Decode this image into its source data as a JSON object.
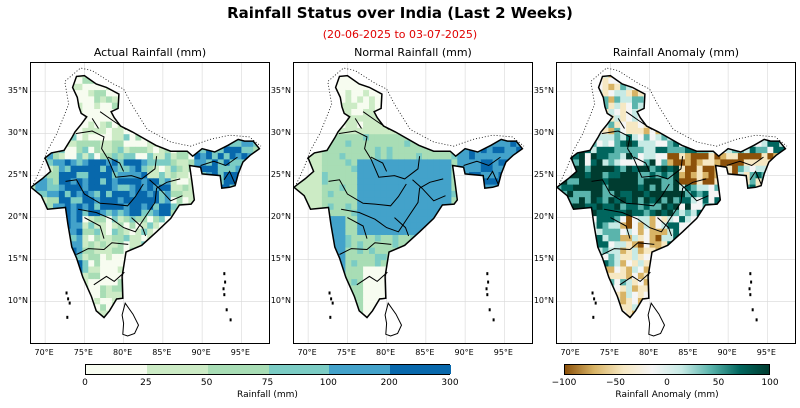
{
  "title": "Rainfall Status over India (Last 2 Weeks)",
  "subtitle": "(20-06-2025 to 03-07-2025)",
  "panels": [
    {
      "title": "Actual Rainfall (mm)"
    },
    {
      "title": "Normal Rainfall (mm)"
    },
    {
      "title": "Rainfall Anomaly (mm)"
    }
  ],
  "lat_ticks": [
    "35°N",
    "30°N",
    "25°N",
    "20°N",
    "15°N",
    "10°N"
  ],
  "lon_ticks": [
    "70°E",
    "75°E",
    "80°E",
    "85°E",
    "90°E",
    "95°E"
  ],
  "colorbar_rain": {
    "label": "Rainfall (mm)",
    "ticks": [
      "0",
      "25",
      "50",
      "75",
      "100",
      "200",
      "300"
    ],
    "colors": [
      "#f7fcf0",
      "#ccebc5",
      "#a8ddb5",
      "#7bccc4",
      "#43a2ca",
      "#0868ac"
    ]
  },
  "colorbar_anomaly": {
    "label": "Rainfall Anomaly (mm)",
    "ticks": [
      "−100",
      "−50",
      "0",
      "50",
      "100"
    ],
    "colors": [
      "#8c510a",
      "#d8b365",
      "#f6e8c3",
      "#f5f5f5",
      "#c7eae5",
      "#5ab4ac",
      "#01665e",
      "#003c30"
    ]
  }
}
